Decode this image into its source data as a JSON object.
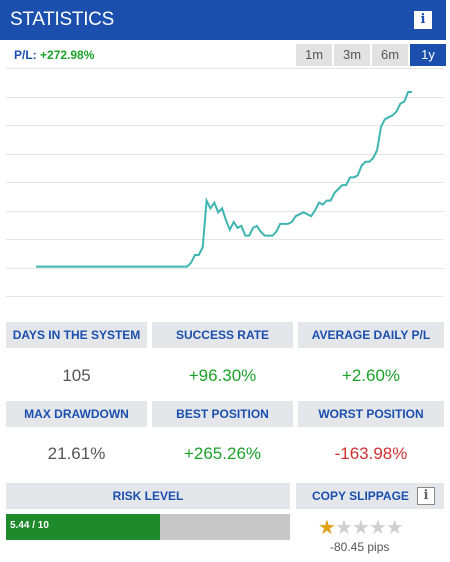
{
  "header": {
    "title": "STATISTICS"
  },
  "pl": {
    "label": "P/L:",
    "value": "+272.98%"
  },
  "ranges": [
    {
      "label": "1m",
      "active": false
    },
    {
      "label": "3m",
      "active": false
    },
    {
      "label": "6m",
      "active": false
    },
    {
      "label": "1y",
      "active": true
    }
  ],
  "stats": {
    "days_label": "DAYS IN THE SYSTEM",
    "days_value": "105",
    "success_label": "SUCCESS RATE",
    "success_value": "+96.30%",
    "avg_label": "AVERAGE DAILY P/L",
    "avg_value": "+2.60%",
    "drawdown_label": "MAX DRAWDOWN",
    "drawdown_value": "21.61%",
    "best_label": "BEST POSITION",
    "best_value": "+265.26%",
    "worst_label": "WORST POSITION",
    "worst_value": "-163.98%"
  },
  "risk": {
    "label": "RISK LEVEL",
    "value_text": "5.44 / 10",
    "level": 5.44,
    "max": 10
  },
  "slippage": {
    "label": "COPY SLIPPAGE",
    "rating": 1,
    "max_rating": 5,
    "pips": "-80.45 pips"
  },
  "colors": {
    "accent": "#1a4fae",
    "positive": "#1aa22a",
    "negative": "#d03030",
    "line": "#3fb5b2"
  },
  "chart_data": {
    "type": "line",
    "ylim": [
      0,
      100
    ],
    "grid": true,
    "series": [
      {
        "values": [
          10,
          10,
          10,
          10,
          10,
          10,
          10,
          10,
          10,
          10,
          10,
          10,
          10,
          10,
          10,
          10,
          10,
          10,
          10,
          10,
          10,
          10,
          10,
          10,
          10,
          10,
          10,
          10,
          10,
          10,
          10,
          10,
          10,
          10,
          10,
          10,
          10,
          10,
          10,
          10,
          12,
          16,
          16,
          20,
          44,
          40,
          43,
          38,
          40,
          34,
          29,
          33,
          30,
          31,
          26,
          26,
          30,
          31,
          28,
          26,
          26,
          26,
          28,
          32,
          32,
          32,
          33,
          36,
          37,
          38,
          37,
          36,
          39,
          43,
          42,
          44,
          44,
          48,
          50,
          52,
          52,
          56,
          56,
          57,
          62,
          64,
          64,
          66,
          70,
          82,
          86,
          87,
          88,
          90,
          94,
          95,
          100,
          100
        ]
      }
    ]
  }
}
